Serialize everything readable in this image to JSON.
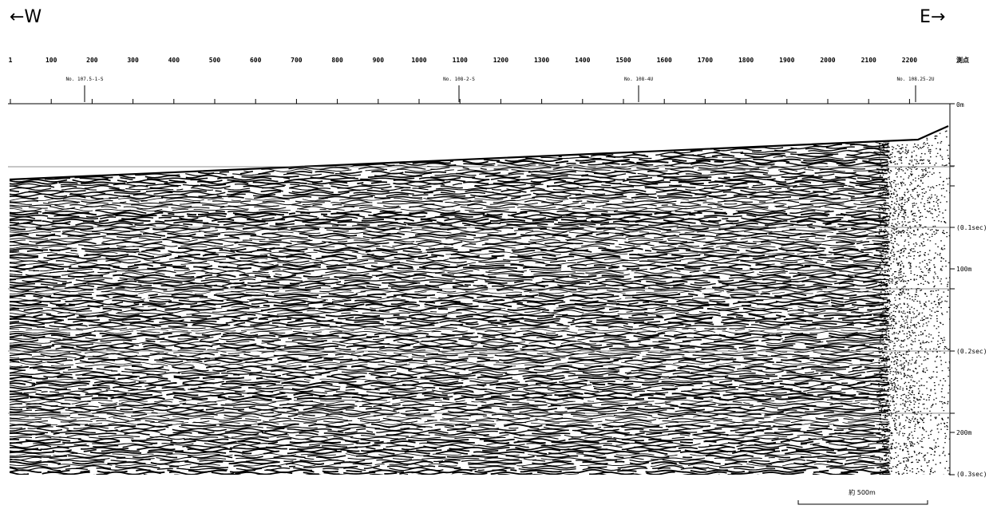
{
  "header": {
    "west": "←W",
    "east": "E→"
  },
  "shot_points": {
    "labels": [
      "1",
      "100",
      "200",
      "300",
      "400",
      "500",
      "600",
      "700",
      "800",
      "900",
      "1000",
      "1100",
      "1200",
      "1300",
      "1400",
      "1500",
      "1600",
      "1700",
      "1800",
      "1900",
      "2000",
      "2100",
      "2200"
    ],
    "unit": "測点"
  },
  "crossings": [
    "No. 107.5-1-S",
    "No. 108-2-S",
    "No. 108-4U",
    "No. 108.25-2U"
  ],
  "depth_labels": [
    "0m",
    "(0.1sec)",
    "100m",
    "(0.2sec)",
    "200m",
    "(0.3sec)"
  ],
  "scale_bar": "約 500m"
}
